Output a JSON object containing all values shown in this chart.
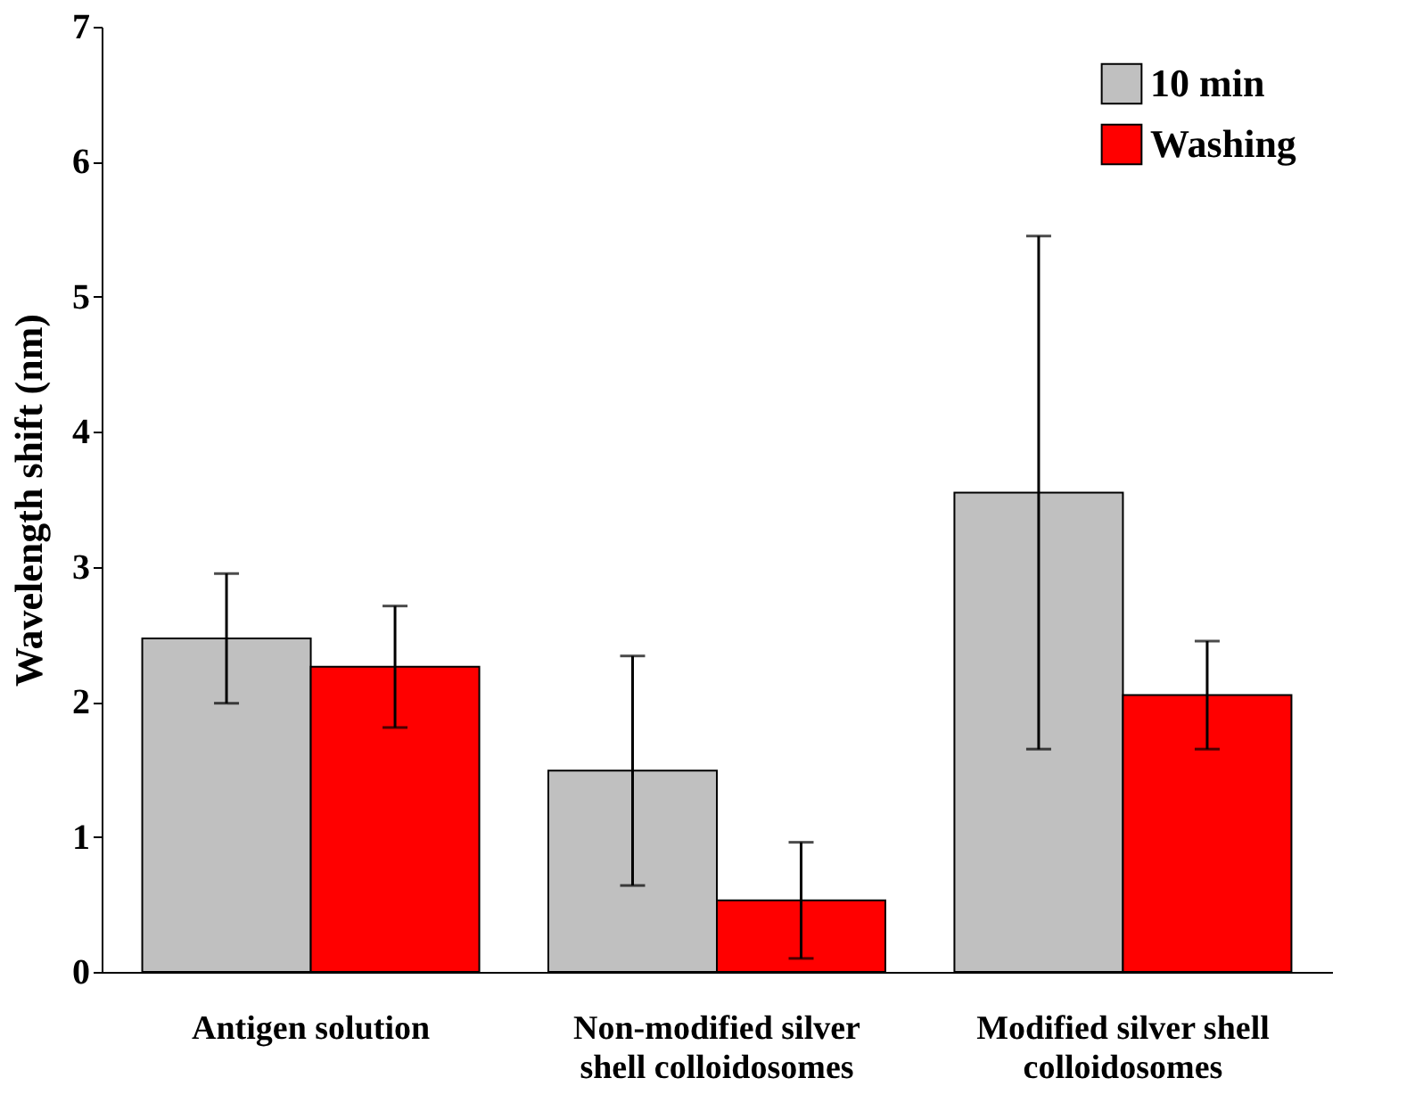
{
  "chart_data": {
    "type": "bar",
    "ylabel": "Wavelength shift (nm)",
    "categories": [
      "Antigen solution",
      "Non-modified silver shell colloidosomes",
      "Modified silver shell colloidosomes"
    ],
    "series": [
      {
        "name": "10 min",
        "color": "#c0c0c0",
        "values": [
          2.47,
          1.49,
          3.55
        ],
        "errors": [
          0.48,
          0.85,
          1.9
        ]
      },
      {
        "name": "Washing",
        "color": "#ff0000",
        "values": [
          2.26,
          0.53,
          2.05
        ],
        "errors": [
          0.45,
          0.43,
          0.4
        ]
      }
    ],
    "ylim": [
      0,
      7
    ],
    "yticks": [
      0,
      1,
      2,
      3,
      4,
      5,
      6,
      7
    ],
    "grid": false,
    "legend": "top right"
  }
}
